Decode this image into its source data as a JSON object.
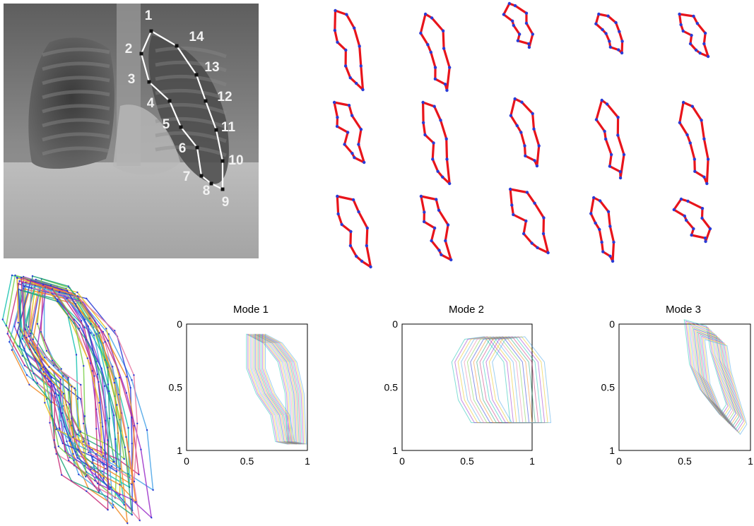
{
  "xray": {
    "landmark_labels": [
      "1",
      "2",
      "3",
      "4",
      "5",
      "6",
      "7",
      "8",
      "9",
      "10",
      "11",
      "12",
      "13",
      "14"
    ],
    "colors": {
      "outline": "#ffffff",
      "marker": "#111111",
      "label": "#f2f2f2"
    }
  },
  "shape_grid": {
    "rows": 3,
    "columns": 5,
    "colors": {
      "edge": "#e8141b",
      "landmark": "#2a3bd6"
    }
  },
  "overlay": {
    "description_colors": [
      "#19c3b2",
      "#9b2fc9",
      "#e8c31a",
      "#4aa5e8",
      "#e87aa5",
      "#7ad04a",
      "#2a3bd6",
      "#f08a24",
      "#1fa37a",
      "#c92f7a"
    ]
  },
  "modes": [
    {
      "title": "Mode 1",
      "x_ticks": [
        "0",
        "0.5",
        "1"
      ],
      "y_ticks": [
        "0",
        "0.5",
        "1"
      ],
      "xlim": [
        0,
        1
      ],
      "ylim": [
        0,
        1
      ]
    },
    {
      "title": "Mode 2",
      "x_ticks": [
        "0",
        "0.5",
        "1"
      ],
      "y_ticks": [
        "0",
        "0.5",
        "1"
      ],
      "xlim": [
        0,
        1
      ],
      "ylim": [
        0,
        1
      ]
    },
    {
      "title": "Mode 3",
      "x_ticks": [
        "0",
        "0.5",
        "1"
      ],
      "y_ticks": [
        "0",
        "0.5",
        "1"
      ],
      "xlim": [
        0,
        1
      ],
      "ylim": [
        0,
        1
      ]
    }
  ]
}
